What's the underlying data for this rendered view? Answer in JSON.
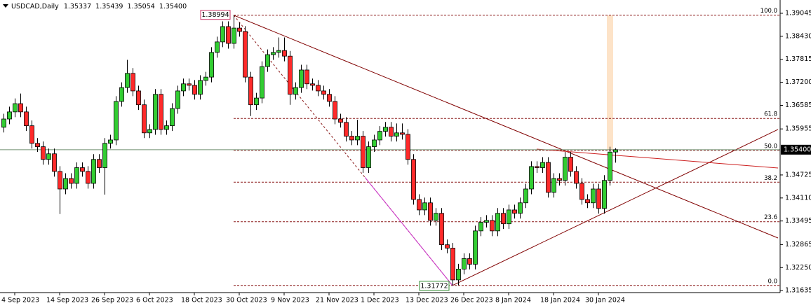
{
  "chart_data": {
    "type": "candlestick",
    "title": "USDCAD,Daily",
    "header_values": [
      "1.35337",
      "1.35439",
      "1.35054",
      "1.35400"
    ],
    "bull_color": "#32cd32",
    "bear_color": "#ff2a2a",
    "categories": [
      null,
      null,
      "4 Sep 2023",
      null,
      null,
      null,
      null,
      null,
      null,
      null,
      "14 Sep 2023",
      null,
      null,
      null,
      null,
      null,
      null,
      null,
      "26 Sep 2023",
      null,
      null,
      null,
      null,
      null,
      null,
      null,
      "6 Oct 2023",
      null,
      null,
      null,
      null,
      null,
      null,
      null,
      "18 Oct 2023",
      null,
      null,
      null,
      null,
      null,
      null,
      null,
      "30 Oct 2023",
      null,
      null,
      null,
      null,
      null,
      null,
      null,
      "9 Nov 2023",
      null,
      null,
      null,
      null,
      null,
      null,
      null,
      "21 Nov 2023",
      null,
      null,
      null,
      null,
      null,
      null,
      null,
      "1 Dec 2023",
      null,
      null,
      null,
      null,
      null,
      null,
      null,
      "13 Dec 2023",
      null,
      null,
      null,
      null,
      null,
      null,
      null,
      "26 Dec 2023",
      null,
      null,
      null,
      null,
      null,
      null,
      null,
      "8 Jan 2024",
      null,
      null,
      null,
      null,
      null,
      null,
      null,
      "18 Jan 2024",
      null,
      null,
      null,
      null,
      null,
      null,
      null,
      "30 Jan 2024",
      null,
      null,
      null
    ],
    "ohlc": [
      [
        1.36,
        1.3636,
        1.3586,
        1.3622
      ],
      [
        1.3622,
        1.3655,
        1.3608,
        1.3641
      ],
      [
        1.3641,
        1.3677,
        1.3627,
        1.3663
      ],
      [
        1.3663,
        1.369,
        1.3627,
        1.3641
      ],
      [
        1.3641,
        1.3655,
        1.359,
        1.3604
      ],
      [
        1.3604,
        1.3618,
        1.3543,
        1.3557
      ],
      [
        1.3557,
        1.3571,
        1.3534,
        1.3548
      ],
      [
        1.3548,
        1.3562,
        1.35,
        1.3514
      ],
      [
        1.3514,
        1.3543,
        1.35,
        1.3529
      ],
      [
        1.3529,
        1.3543,
        1.3468,
        1.3482
      ],
      [
        1.3482,
        1.3496,
        1.3368,
        1.3435
      ],
      [
        1.3435,
        1.3477,
        1.3421,
        1.3463
      ],
      [
        1.3463,
        1.3477,
        1.3436,
        1.345
      ],
      [
        1.345,
        1.3506,
        1.3436,
        1.3492
      ],
      [
        1.3492,
        1.3506,
        1.3468,
        1.3482
      ],
      [
        1.3482,
        1.3496,
        1.3436,
        1.345
      ],
      [
        1.345,
        1.3528,
        1.3436,
        1.3514
      ],
      [
        1.3514,
        1.3528,
        1.3478,
        1.3492
      ],
      [
        1.3492,
        1.3571,
        1.342,
        1.3557
      ],
      [
        1.3557,
        1.358,
        1.3543,
        1.3566
      ],
      [
        1.3566,
        1.3683,
        1.3552,
        1.3669
      ],
      [
        1.3669,
        1.372,
        1.3655,
        1.3706
      ],
      [
        1.3706,
        1.378,
        1.3692,
        1.3744
      ],
      [
        1.3744,
        1.3758,
        1.3683,
        1.3697
      ],
      [
        1.3697,
        1.3711,
        1.3646,
        1.366
      ],
      [
        1.366,
        1.3674,
        1.3571,
        1.3585
      ],
      [
        1.3585,
        1.3608,
        1.3571,
        1.3594
      ],
      [
        1.3594,
        1.3702,
        1.358,
        1.3688
      ],
      [
        1.3688,
        1.3702,
        1.358,
        1.3594
      ],
      [
        1.3594,
        1.3618,
        1.358,
        1.3604
      ],
      [
        1.3604,
        1.3664,
        1.359,
        1.365
      ],
      [
        1.365,
        1.3711,
        1.3636,
        1.3697
      ],
      [
        1.3697,
        1.373,
        1.3683,
        1.3716
      ],
      [
        1.3716,
        1.373,
        1.3698,
        1.3712
      ],
      [
        1.3712,
        1.3726,
        1.3674,
        1.3688
      ],
      [
        1.3688,
        1.3739,
        1.3674,
        1.3725
      ],
      [
        1.3725,
        1.3748,
        1.3711,
        1.3734
      ],
      [
        1.3734,
        1.3814,
        1.372,
        1.38
      ],
      [
        1.38,
        1.3842,
        1.3786,
        1.3828
      ],
      [
        1.3828,
        1.3883,
        1.3814,
        1.3869
      ],
      [
        1.3869,
        1.3883,
        1.381,
        1.3824
      ],
      [
        1.3824,
        1.38994,
        1.381,
        1.3865
      ],
      [
        1.3865,
        1.388,
        1.3842,
        1.3856
      ],
      [
        1.3856,
        1.387,
        1.372,
        1.3734
      ],
      [
        1.3734,
        1.3748,
        1.363,
        1.366
      ],
      [
        1.366,
        1.3692,
        1.3646,
        1.3678
      ],
      [
        1.3678,
        1.3776,
        1.3664,
        1.3762
      ],
      [
        1.3762,
        1.3808,
        1.3748,
        1.3794
      ],
      [
        1.3794,
        1.3814,
        1.378,
        1.38
      ],
      [
        1.38,
        1.384,
        1.3786,
        1.3805
      ],
      [
        1.3805,
        1.384,
        1.3776,
        1.379
      ],
      [
        1.379,
        1.3804,
        1.366,
        1.3688
      ],
      [
        1.3688,
        1.372,
        1.3674,
        1.3706
      ],
      [
        1.3706,
        1.3767,
        1.3692,
        1.3753
      ],
      [
        1.3753,
        1.3767,
        1.3702,
        1.3716
      ],
      [
        1.3716,
        1.373,
        1.3698,
        1.3712
      ],
      [
        1.3712,
        1.3726,
        1.3683,
        1.3697
      ],
      [
        1.3697,
        1.3711,
        1.3674,
        1.3688
      ],
      [
        1.3688,
        1.3702,
        1.3655,
        1.3669
      ],
      [
        1.3669,
        1.3683,
        1.3608,
        1.3622
      ],
      [
        1.3622,
        1.3636,
        1.3599,
        1.3613
      ],
      [
        1.3613,
        1.3627,
        1.3562,
        1.3576
      ],
      [
        1.3576,
        1.359,
        1.3552,
        1.3566
      ],
      [
        1.3566,
        1.362,
        1.3552,
        1.3576
      ],
      [
        1.3576,
        1.359,
        1.3478,
        1.3492
      ],
      [
        1.3492,
        1.3562,
        1.3478,
        1.3548
      ],
      [
        1.3548,
        1.358,
        1.3534,
        1.3566
      ],
      [
        1.3566,
        1.3603,
        1.3552,
        1.3589
      ],
      [
        1.3589,
        1.3614,
        1.3575,
        1.36
      ],
      [
        1.36,
        1.3614,
        1.3562,
        1.3576
      ],
      [
        1.3576,
        1.361,
        1.3562,
        1.3585
      ],
      [
        1.3585,
        1.361,
        1.3567,
        1.3581
      ],
      [
        1.3581,
        1.3595,
        1.35,
        1.3514
      ],
      [
        1.3514,
        1.3528,
        1.3393,
        1.3407
      ],
      [
        1.3407,
        1.3421,
        1.3365,
        1.3379
      ],
      [
        1.3379,
        1.3412,
        1.3365,
        1.3398
      ],
      [
        1.3398,
        1.3412,
        1.3337,
        1.3351
      ],
      [
        1.3351,
        1.3384,
        1.3337,
        1.337
      ],
      [
        1.337,
        1.3384,
        1.3272,
        1.3286
      ],
      [
        1.3286,
        1.33,
        1.3263,
        1.3277
      ],
      [
        1.3277,
        1.3291,
        1.31772,
        1.3192
      ],
      [
        1.3192,
        1.3235,
        1.3178,
        1.3221
      ],
      [
        1.3221,
        1.3263,
        1.3207,
        1.3249
      ],
      [
        1.3249,
        1.3263,
        1.322,
        1.3234
      ],
      [
        1.3234,
        1.3337,
        1.322,
        1.3323
      ],
      [
        1.3323,
        1.336,
        1.3309,
        1.3346
      ],
      [
        1.3346,
        1.3365,
        1.3332,
        1.3351
      ],
      [
        1.3351,
        1.3365,
        1.3309,
        1.3323
      ],
      [
        1.3323,
        1.3384,
        1.3309,
        1.337
      ],
      [
        1.337,
        1.3384,
        1.3328,
        1.3342
      ],
      [
        1.3342,
        1.3393,
        1.3328,
        1.3379
      ],
      [
        1.3379,
        1.3393,
        1.3356,
        1.337
      ],
      [
        1.337,
        1.3412,
        1.3356,
        1.3398
      ],
      [
        1.3398,
        1.3449,
        1.3384,
        1.3435
      ],
      [
        1.3435,
        1.3509,
        1.3421,
        1.3495
      ],
      [
        1.3495,
        1.3509,
        1.3478,
        1.3492
      ],
      [
        1.3492,
        1.352,
        1.3478,
        1.3506
      ],
      [
        1.3506,
        1.352,
        1.3412,
        1.3426
      ],
      [
        1.3426,
        1.3477,
        1.3412,
        1.3463
      ],
      [
        1.3463,
        1.3477,
        1.3444,
        1.3458
      ],
      [
        1.3458,
        1.3534,
        1.3444,
        1.352
      ],
      [
        1.352,
        1.3534,
        1.3468,
        1.3482
      ],
      [
        1.3482,
        1.3496,
        1.3436,
        1.345
      ],
      [
        1.345,
        1.3464,
        1.3393,
        1.3407
      ],
      [
        1.3407,
        1.3421,
        1.3384,
        1.3398
      ],
      [
        1.3398,
        1.3449,
        1.3384,
        1.3435
      ],
      [
        1.3435,
        1.3449,
        1.3369,
        1.3383
      ],
      [
        1.3383,
        1.3472,
        1.3369,
        1.3458
      ],
      [
        1.3458,
        1.3548,
        1.3444,
        1.35337
      ],
      [
        1.35337,
        1.35439,
        1.35054,
        1.354
      ]
    ],
    "ylim": [
      1.316,
      1.394
    ],
    "yticks": [
      1.39045,
      {
        "value": 1.3843,
        "label": "1.38430"
      },
      1.37815,
      {
        "value": 1.372,
        "label": "1.37200"
      },
      1.36585,
      1.35955,
      1.34725,
      {
        "value": 1.3411,
        "label": "1.34110"
      },
      1.33495,
      1.32865,
      {
        "value": 1.3225,
        "label": "1.32250"
      },
      1.31635
    ],
    "current_price": {
      "value": 1.354,
      "label": "1.35400"
    },
    "fib_levels": [
      {
        "label": "100.0",
        "value": 1.38994
      },
      {
        "label": "61.8",
        "value": 1.36235
      },
      {
        "label": "50.0",
        "value": 1.35383
      },
      {
        "label": "38.2",
        "value": 1.34531
      },
      {
        "label": "23.6",
        "value": 1.33476
      },
      {
        "label": "0.0",
        "value": 1.31772
      }
    ],
    "trendlines": [
      {
        "from": [
          41,
          1.38994
        ],
        "to": [
          138,
          1.3304
        ],
        "color": "#800000"
      },
      {
        "from": [
          80,
          1.31772
        ],
        "to": [
          138,
          1.3594
        ],
        "color": "#800000"
      },
      {
        "from": [
          95,
          1.35416
        ],
        "to": [
          138,
          1.3491
        ],
        "color": "#cc1f1f"
      }
    ]
  }
}
